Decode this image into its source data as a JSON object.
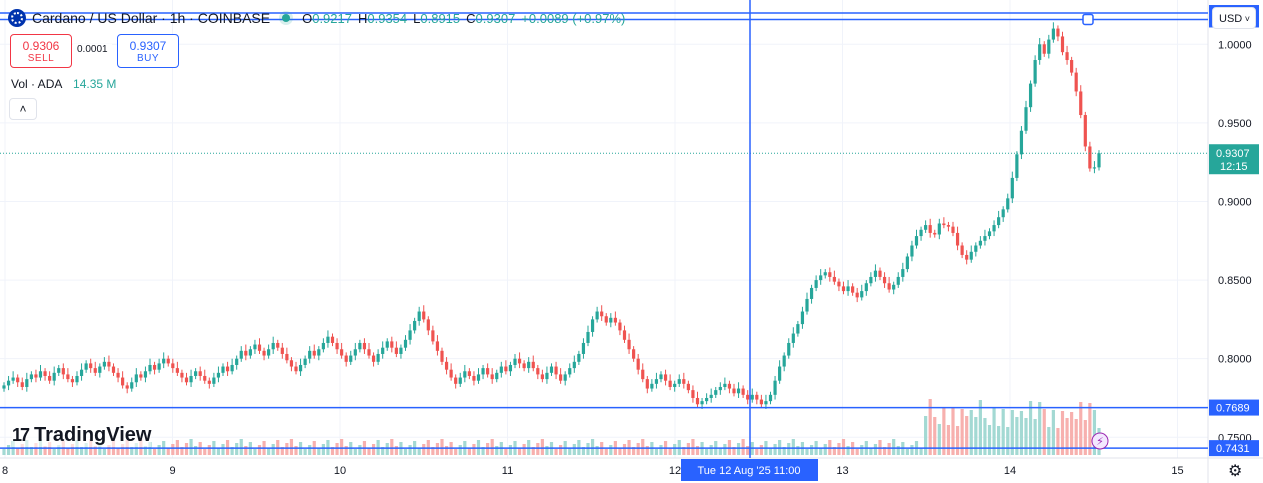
{
  "header": {
    "title": "Cardano / US Dollar · 1h · COINBASE",
    "open_label": "O",
    "open": "0.9217",
    "high_label": "H",
    "high": "0.9354",
    "low_label": "L",
    "low": "0.8915",
    "close_label": "C",
    "close": "0.9307",
    "change": "+0.0089 (+0.97%)"
  },
  "trade": {
    "sell_price": "0.9306",
    "sell_label": "SELL",
    "buy_price": "0.9307",
    "buy_label": "BUY",
    "spread": "0.0001"
  },
  "volume_indicator": {
    "label": "Vol · ADA",
    "value": "14.35 M",
    "collapse_glyph": "˄"
  },
  "currency": {
    "selected": "USD",
    "chevron": "˅"
  },
  "branding": {
    "logo_text": "TradingView",
    "logo_mark": "17"
  },
  "colors": {
    "up": "#26a69a",
    "down": "#ef5350",
    "accent": "#2962ff",
    "vol_up": "#a3d9d3",
    "vol_down": "#f7b0ae"
  },
  "chart_data": {
    "type": "candlestick",
    "symbol": "ADA/USD",
    "timeframe": "1h",
    "ylim": [
      0.74,
      1.025
    ],
    "y_ticks": [
      "1.0000",
      "0.9500",
      "0.9000",
      "0.8500",
      "0.8000",
      "0.7500"
    ],
    "x_ticks": [
      "8",
      "9",
      "10",
      "11",
      "12",
      "13",
      "14",
      "15"
    ],
    "last_price": "0.9307",
    "countdown": "12:15",
    "h_lines": [
      {
        "price": "1.0199"
      },
      {
        "price": "1.0158"
      },
      {
        "price": "0.7689"
      },
      {
        "price": "0.7431"
      }
    ],
    "crosshair_label": "Tue 12 Aug '25   11:00",
    "closes": [
      0.783,
      0.786,
      0.788,
      0.785,
      0.782,
      0.787,
      0.79,
      0.788,
      0.792,
      0.789,
      0.786,
      0.791,
      0.794,
      0.79,
      0.787,
      0.785,
      0.789,
      0.793,
      0.797,
      0.794,
      0.791,
      0.795,
      0.798,
      0.795,
      0.791,
      0.788,
      0.783,
      0.781,
      0.785,
      0.79,
      0.788,
      0.792,
      0.796,
      0.793,
      0.797,
      0.8,
      0.797,
      0.794,
      0.791,
      0.788,
      0.785,
      0.789,
      0.792,
      0.789,
      0.786,
      0.784,
      0.788,
      0.791,
      0.795,
      0.792,
      0.796,
      0.8,
      0.805,
      0.802,
      0.806,
      0.809,
      0.805,
      0.802,
      0.806,
      0.81,
      0.807,
      0.803,
      0.799,
      0.795,
      0.792,
      0.796,
      0.8,
      0.805,
      0.802,
      0.806,
      0.81,
      0.814,
      0.81,
      0.806,
      0.802,
      0.798,
      0.802,
      0.806,
      0.81,
      0.806,
      0.802,
      0.798,
      0.803,
      0.807,
      0.811,
      0.807,
      0.803,
      0.807,
      0.812,
      0.818,
      0.824,
      0.83,
      0.825,
      0.818,
      0.811,
      0.805,
      0.798,
      0.793,
      0.788,
      0.784,
      0.788,
      0.792,
      0.789,
      0.786,
      0.79,
      0.794,
      0.79,
      0.787,
      0.791,
      0.795,
      0.792,
      0.796,
      0.8,
      0.797,
      0.794,
      0.798,
      0.794,
      0.79,
      0.787,
      0.791,
      0.795,
      0.79,
      0.786,
      0.79,
      0.794,
      0.798,
      0.803,
      0.81,
      0.817,
      0.825,
      0.83,
      0.827,
      0.823,
      0.826,
      0.823,
      0.818,
      0.812,
      0.806,
      0.8,
      0.793,
      0.787,
      0.781,
      0.784,
      0.787,
      0.79,
      0.786,
      0.782,
      0.784,
      0.787,
      0.784,
      0.78,
      0.775,
      0.771,
      0.773,
      0.775,
      0.777,
      0.78,
      0.782,
      0.784,
      0.781,
      0.778,
      0.781,
      0.777,
      0.774,
      0.777,
      0.774,
      0.771,
      0.773,
      0.777,
      0.786,
      0.795,
      0.802,
      0.81,
      0.816,
      0.822,
      0.83,
      0.838,
      0.845,
      0.85,
      0.853,
      0.855,
      0.852,
      0.849,
      0.846,
      0.843,
      0.846,
      0.842,
      0.839,
      0.843,
      0.848,
      0.852,
      0.856,
      0.852,
      0.848,
      0.844,
      0.847,
      0.852,
      0.857,
      0.865,
      0.872,
      0.878,
      0.882,
      0.885,
      0.88,
      0.879,
      0.886,
      0.885,
      0.884,
      0.88,
      0.872,
      0.866,
      0.863,
      0.868,
      0.872,
      0.875,
      0.878,
      0.881,
      0.885,
      0.89,
      0.895,
      0.902,
      0.915,
      0.93,
      0.945,
      0.96,
      0.975,
      0.99,
      1.0,
      0.994,
      1.003,
      1.01,
      1.005,
      0.995,
      0.99,
      0.982,
      0.97,
      0.955,
      0.935,
      0.921,
      0.9217,
      0.9307
    ],
    "volumes": [
      1,
      1,
      1,
      1,
      1,
      1,
      1,
      1,
      1,
      1,
      1,
      1,
      1,
      1,
      1,
      1,
      1,
      1,
      1,
      1,
      1,
      1,
      1,
      1,
      1,
      1,
      1,
      1,
      1,
      1,
      1,
      1,
      1,
      1,
      1,
      1,
      1,
      1,
      1,
      1,
      1,
      1,
      1,
      1,
      1,
      1,
      1,
      1,
      1,
      1,
      1,
      1,
      1,
      1,
      1,
      1,
      1,
      1,
      1,
      1,
      1,
      1,
      1,
      1,
      1,
      1,
      1,
      1,
      1,
      1,
      1,
      1,
      1,
      1,
      1,
      1,
      1,
      1,
      1,
      1,
      1,
      1,
      1,
      1,
      1,
      1,
      1,
      1,
      1,
      1,
      1,
      1,
      1,
      1,
      1,
      1,
      1,
      1,
      1,
      1,
      1,
      1,
      1,
      1,
      1,
      1,
      1,
      1,
      1,
      1,
      1,
      1,
      1,
      1,
      1,
      1,
      1,
      1,
      1,
      1,
      1,
      1,
      1,
      1,
      1,
      1,
      1,
      1,
      1,
      1,
      1,
      1,
      1,
      1,
      1,
      1,
      1,
      1,
      1,
      1,
      1,
      1,
      1,
      1,
      1,
      1,
      1,
      1,
      1,
      1,
      1,
      1,
      1,
      1,
      1,
      1,
      1,
      1,
      1,
      1,
      1,
      1,
      1,
      1,
      1,
      1,
      1,
      1,
      1,
      1,
      1,
      1,
      1,
      1,
      1,
      1,
      1,
      1,
      1,
      1,
      1,
      1,
      1,
      1,
      1,
      1,
      1,
      1,
      1,
      1,
      1,
      1,
      1,
      1,
      1,
      1,
      1,
      1,
      1,
      1,
      1,
      1,
      1,
      1,
      1,
      1,
      1,
      1,
      1,
      1,
      1,
      1,
      1,
      1,
      1,
      1,
      1,
      1,
      1,
      1,
      1,
      1,
      1,
      1,
      1,
      1,
      1,
      1,
      1,
      1,
      1,
      1,
      1,
      1,
      1,
      1,
      1,
      1,
      1,
      1,
      1,
      1
    ]
  }
}
